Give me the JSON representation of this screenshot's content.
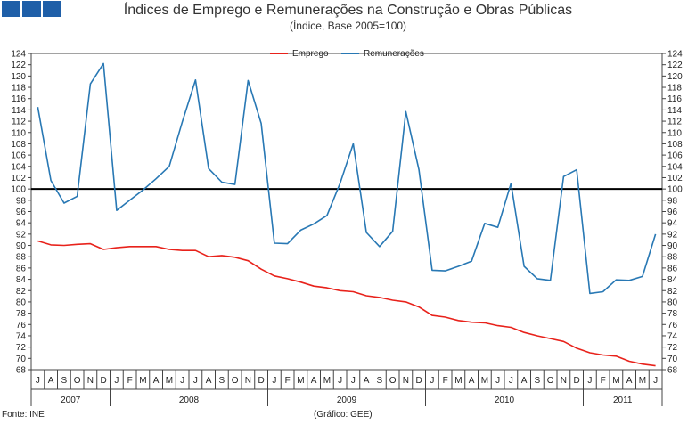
{
  "header": {
    "title": "Índices de Emprego e Remunerações na Construção e Obras Públicas",
    "subtitle": "(Índice, Base 2005=100)"
  },
  "footer": {
    "source": "Fonte: INE",
    "credit": "(Gráfico: GEE)"
  },
  "chart_data": {
    "type": "line",
    "title": "Índices de Emprego e Remunerações na Construção e Obras Públicas",
    "subtitle": "(Índice, Base 2005=100)",
    "ylim": [
      68,
      124
    ],
    "ytick_step": 2,
    "reference_line": 100,
    "legend_position": "top-center",
    "categories": [
      "J",
      "A",
      "S",
      "O",
      "N",
      "D",
      "J",
      "F",
      "M",
      "A",
      "M",
      "J",
      "J",
      "A",
      "S",
      "O",
      "N",
      "D",
      "J",
      "F",
      "M",
      "A",
      "M",
      "J",
      "J",
      "A",
      "S",
      "O",
      "N",
      "D",
      "J",
      "F",
      "M",
      "A",
      "M",
      "J",
      "J",
      "A",
      "S",
      "O",
      "N",
      "D",
      "J",
      "F",
      "M",
      "A",
      "M",
      "J"
    ],
    "year_groups": [
      {
        "label": "2007",
        "count": 6
      },
      {
        "label": "2008",
        "count": 12
      },
      {
        "label": "2009",
        "count": 12
      },
      {
        "label": "2010",
        "count": 12
      },
      {
        "label": "2011",
        "count": 6
      }
    ],
    "series": [
      {
        "name": "Emprego",
        "color": "#e8221b",
        "values": [
          90.8,
          90.1,
          90.0,
          90.2,
          90.3,
          89.3,
          89.6,
          89.8,
          89.8,
          89.8,
          89.3,
          89.1,
          89.1,
          88.0,
          88.2,
          87.9,
          87.3,
          85.8,
          84.6,
          84.1,
          83.5,
          82.8,
          82.5,
          82.0,
          81.8,
          81.1,
          80.8,
          80.3,
          80.0,
          79.1,
          77.6,
          77.3,
          76.7,
          76.4,
          76.3,
          75.8,
          75.5,
          74.6,
          74.0,
          73.5,
          73.0,
          71.8,
          71.0,
          70.6,
          70.4,
          69.5,
          69.0,
          68.7
        ]
      },
      {
        "name": "Remunerações",
        "color": "#2878b4",
        "values": [
          114.5,
          101.5,
          97.5,
          98.7,
          118.6,
          122.2,
          96.2,
          98.0,
          99.8,
          101.8,
          104.0,
          111.9,
          119.3,
          103.6,
          101.2,
          100.8,
          119.2,
          111.6,
          90.4,
          90.3,
          92.7,
          93.8,
          95.3,
          101.0,
          108.0,
          92.3,
          89.8,
          92.5,
          113.7,
          103.4,
          85.6,
          85.5,
          86.3,
          87.2,
          93.9,
          93.2,
          101.0,
          86.3,
          84.1,
          83.8,
          102.2,
          103.4,
          81.5,
          81.8,
          83.9,
          83.8,
          84.5,
          92.0
        ]
      }
    ]
  }
}
